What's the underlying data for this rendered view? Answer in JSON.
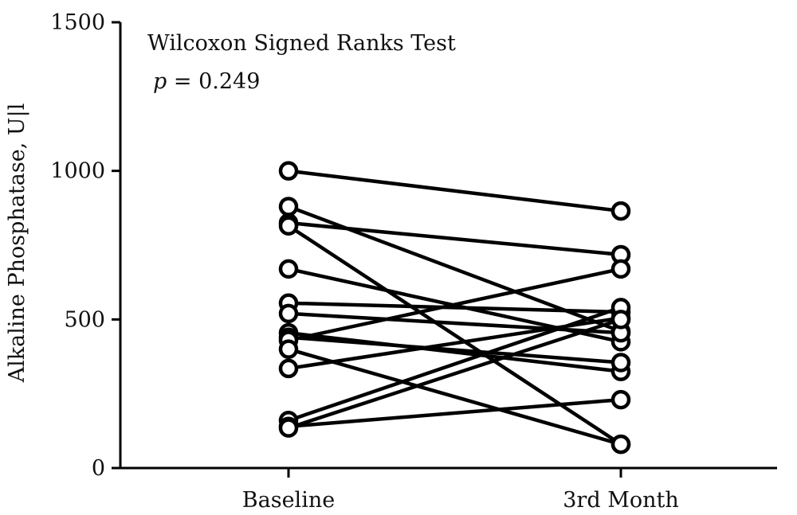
{
  "chart_data": {
    "type": "line",
    "title": "",
    "xlabel": "",
    "ylabel": "Alkaline Phosphatase, U|l",
    "categories": [
      "Baseline",
      "3rd Month"
    ],
    "ylim": [
      0,
      1500
    ],
    "yticks": [
      "0",
      "500",
      "1000",
      "1500"
    ],
    "annotations": {
      "test_name": "Wilcoxon Signed Ranks Test",
      "p_symbol": "p",
      "p_text": " = 0.249"
    },
    "grid": false,
    "legend": "none",
    "marker": "open-circle",
    "color": "#000000",
    "pairs": [
      {
        "baseline": 1000,
        "month3": 865
      },
      {
        "baseline": 880,
        "month3": 460
      },
      {
        "baseline": 825,
        "month3": 718
      },
      {
        "baseline": 815,
        "month3": 80
      },
      {
        "baseline": 670,
        "month3": 425
      },
      {
        "baseline": 555,
        "month3": 525
      },
      {
        "baseline": 520,
        "month3": 455
      },
      {
        "baseline": 455,
        "month3": 325
      },
      {
        "baseline": 440,
        "month3": 355
      },
      {
        "baseline": 430,
        "month3": 670
      },
      {
        "baseline": 400,
        "month3": 80
      },
      {
        "baseline": 335,
        "month3": 505
      },
      {
        "baseline": 160,
        "month3": 540
      },
      {
        "baseline": 140,
        "month3": 230
      },
      {
        "baseline": 135,
        "month3": 500
      }
    ]
  }
}
